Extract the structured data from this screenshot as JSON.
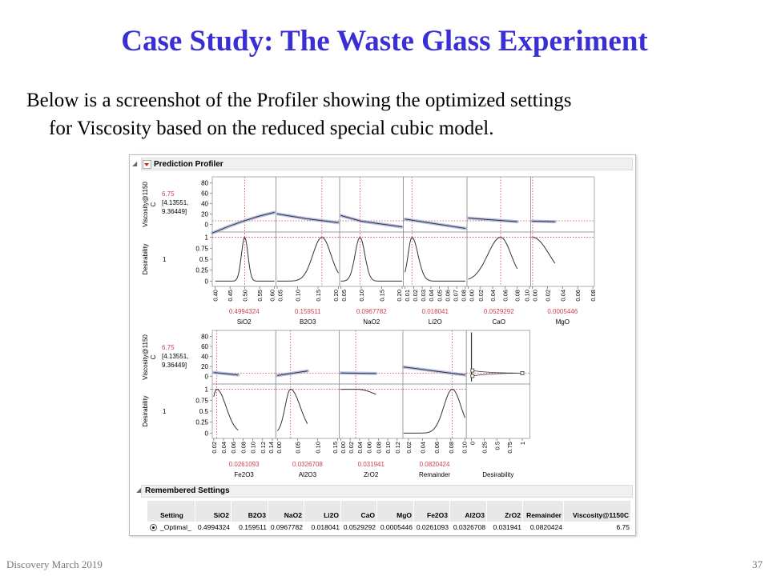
{
  "slide": {
    "title": "Case Study: The Waste Glass Experiment",
    "body_line1": "Below is a screenshot of the Profiler showing the optimized settings",
    "body_line2": "for Viscosity based on the reduced special cubic model.",
    "footer_left": "Discovery March 2019",
    "page_number": "37"
  },
  "profiler": {
    "title": "Prediction Profiler",
    "response_label_line1": "Viscosity@1150",
    "response_label_line2": "C",
    "desirability_label": "Desirability",
    "response_value": "6.75",
    "ci_line1": "[4.13551,",
    "ci_line2": "9.36449]",
    "desirability_value": "1",
    "colors": {
      "value": "#d0404f",
      "curve": "#333333",
      "band": "#9aa8d8",
      "refline": "#d0404f"
    }
  },
  "chart_data": {
    "type": "line",
    "viscosity_axis": {
      "ylim": [
        -15,
        92
      ],
      "ticks": [
        "0",
        "20",
        "40",
        "60",
        "80"
      ],
      "tick_values": [
        0,
        20,
        40,
        60,
        80
      ],
      "current": 6.75
    },
    "desirability_axis": {
      "ylim": [
        -0.12,
        1.12
      ],
      "ticks": [
        "0",
        "0.25",
        "0.5",
        "0.75",
        "1"
      ],
      "tick_values": [
        0,
        0.25,
        0.5,
        0.75,
        1
      ],
      "current": 1
    },
    "rows": [
      [
        {
          "name": "SiO2",
          "value": "0.4994324",
          "current": 0.4994324,
          "xlim": [
            0.39,
            0.605
          ],
          "ticks": [
            "0.40",
            "0.45",
            "0.50",
            "0.55",
            "0.60"
          ],
          "tick_values": [
            0.4,
            0.45,
            0.5,
            0.55,
            0.6
          ],
          "viscosity": [
            [
              0.39,
              -17
            ],
            [
              0.45,
              -3
            ],
            [
              0.5,
              7
            ],
            [
              0.55,
              16
            ],
            [
              0.6,
              23
            ]
          ],
          "desirability": {
            "domain": [
              0.4,
              0.6
            ],
            "sd_left": 0.011,
            "sd_right": 0.011
          }
        },
        {
          "name": "B2O3",
          "value": "0.159511",
          "current": 0.159511,
          "xlim": [
            0.047,
            0.203
          ],
          "ticks": [
            "0.05",
            "0.10",
            "0.15",
            "0.20"
          ],
          "tick_values": [
            0.05,
            0.1,
            0.15,
            0.2
          ],
          "viscosity": [
            [
              0.05,
              20
            ],
            [
              0.12,
              11
            ],
            [
              0.2,
              3
            ]
          ],
          "desirability": {
            "domain": [
              0.05,
              0.2
            ],
            "sd_left": 0.022,
            "sd_right": 0.022
          }
        },
        {
          "name": "NaO2",
          "value": "0.0967782",
          "current": 0.0967782,
          "xlim": [
            0.047,
            0.203
          ],
          "ticks": [
            "0.05",
            "0.10",
            "0.15",
            "0.20"
          ],
          "tick_values": [
            0.05,
            0.1,
            0.15,
            0.2
          ],
          "viscosity": [
            [
              0.05,
              17
            ],
            [
              0.1,
              6
            ],
            [
              0.2,
              -5
            ]
          ],
          "desirability": {
            "domain": [
              0.05,
              0.2
            ],
            "sd_left": 0.012,
            "sd_right": 0.012
          }
        },
        {
          "name": "Li2O",
          "value": "0.018041",
          "current": 0.018041,
          "xlim": [
            0.008,
            0.082
          ],
          "ticks": [
            "0.01",
            "0.02",
            "0.03",
            "0.04",
            "0.05",
            "0.06",
            "0.07",
            "0.08"
          ],
          "tick_values": [
            0.01,
            0.02,
            0.03,
            0.04,
            0.05,
            0.06,
            0.07,
            0.08
          ],
          "viscosity": [
            [
              0.01,
              10
            ],
            [
              0.08,
              -8
            ]
          ],
          "desirability": {
            "domain": [
              0.01,
              0.08
            ],
            "sd_left": 0.0045,
            "sd_right": 0.007
          }
        },
        {
          "name": "CaO",
          "value": "0.0529292",
          "current": 0.0529292,
          "xlim": [
            -0.002,
            0.102
          ],
          "ticks": [
            "0.00",
            "0.02",
            "0.04",
            "0.06",
            "0.08",
            "0.10"
          ],
          "tick_values": [
            0,
            0.02,
            0.04,
            0.06,
            0.08,
            0.1
          ],
          "viscosity": [
            [
              0,
              12
            ],
            [
              0.08,
              5
            ]
          ],
          "desirability": {
            "domain": [
              0,
              0.08
            ],
            "sd_left": 0.021,
            "sd_right": 0.017
          }
        },
        {
          "name": "MgO",
          "value": "0.0005446",
          "current": 0.0005446,
          "xlim": [
            -0.002,
            0.082
          ],
          "ticks": [
            "0.00",
            "0.02",
            "0.04",
            "0.06",
            "0.08"
          ],
          "tick_values": [
            0,
            0.02,
            0.04,
            0.06,
            0.08
          ],
          "viscosity": [
            [
              0,
              6
            ],
            [
              0.03,
              5
            ]
          ],
          "desirability": {
            "domain": [
              0,
              0.03
            ],
            "sd_left": 0.02,
            "sd_right": 0.022
          }
        }
      ],
      [
        {
          "name": "Fe2O3",
          "value": "0.0261093",
          "current": 0.0261093,
          "xlim": [
            0.017,
            0.147
          ],
          "ticks": [
            "0.02",
            "0.04",
            "0.06",
            "0.08",
            "0.10",
            "0.12",
            "0.14"
          ],
          "tick_values": [
            0.02,
            0.04,
            0.06,
            0.08,
            0.1,
            0.12,
            0.14
          ],
          "viscosity": [
            [
              0.02,
              8
            ],
            [
              0.07,
              3
            ]
          ],
          "desirability": {
            "domain": [
              0.02,
              0.07
            ],
            "sd_left": 0.01,
            "sd_right": 0.019
          }
        },
        {
          "name": "Al2O3",
          "value": "0.0326708",
          "current": 0.0326708,
          "xlim": [
            -0.004,
            0.154
          ],
          "ticks": [
            "0.00",
            "0.05",
            "0.10",
            "0.15"
          ],
          "tick_values": [
            0,
            0.05,
            0.1,
            0.15
          ],
          "viscosity": [
            [
              0,
              2
            ],
            [
              0.075,
              11
            ]
          ],
          "desirability": {
            "domain": [
              0,
              0.075
            ],
            "sd_left": 0.0135,
            "sd_right": 0.024
          }
        },
        {
          "name": "ZrO2",
          "value": "0.031941",
          "current": 0.031941,
          "xlim": [
            -0.003,
            0.132
          ],
          "ticks": [
            "0.00",
            "0.02",
            "0.04",
            "0.06",
            "0.08",
            "0.10",
            "0.12"
          ],
          "tick_values": [
            0,
            0.02,
            0.04,
            0.06,
            0.08,
            0.1,
            0.12
          ],
          "viscosity": [
            [
              0,
              7
            ],
            [
              0.075,
              6
            ]
          ],
          "desirability": {
            "domain": [
              0,
              0.075
            ],
            "sd_left": 0.5,
            "sd_right": 0.086
          }
        },
        {
          "name": "Remainder",
          "value": "0.0820424",
          "current": 0.0820424,
          "xlim": [
            0.012,
            0.102
          ],
          "ticks": [
            "0.02",
            "0.04",
            "0.06",
            "0.08",
            "0.10"
          ],
          "tick_values": [
            0.02,
            0.04,
            0.06,
            0.08,
            0.1
          ],
          "viscosity": [
            [
              0.013,
              19
            ],
            [
              0.1,
              3
            ]
          ],
          "desirability": {
            "domain": [
              0.013,
              0.1
            ],
            "sd_left": 0.012,
            "sd_right": 0.0124
          }
        },
        {
          "name": "Desirability",
          "value": "",
          "current": null,
          "xlim": [
            -0.1,
            1.15
          ],
          "ticks": [
            "0",
            "0.25",
            "0.5",
            "0.75",
            "1"
          ],
          "tick_values": [
            0,
            0.25,
            0.5,
            0.75,
            1
          ],
          "viscosity": [],
          "desirability": null
        }
      ]
    ]
  },
  "remembered": {
    "title": "Remembered Settings",
    "columns": [
      "Setting",
      "SiO2",
      "B2O3",
      "NaO2",
      "Li2O",
      "CaO",
      "MgO",
      "Fe2O3",
      "Al2O3",
      "ZrO2",
      "Remainder",
      "Viscosity@1150C"
    ],
    "rows": [
      [
        "_Optimal_",
        "0.4994324",
        "0.159511",
        "0.0967782",
        "0.018041",
        "0.0529292",
        "0.0005446",
        "0.0261093",
        "0.0326708",
        "0.031941",
        "0.0820424",
        "6.75"
      ]
    ]
  }
}
